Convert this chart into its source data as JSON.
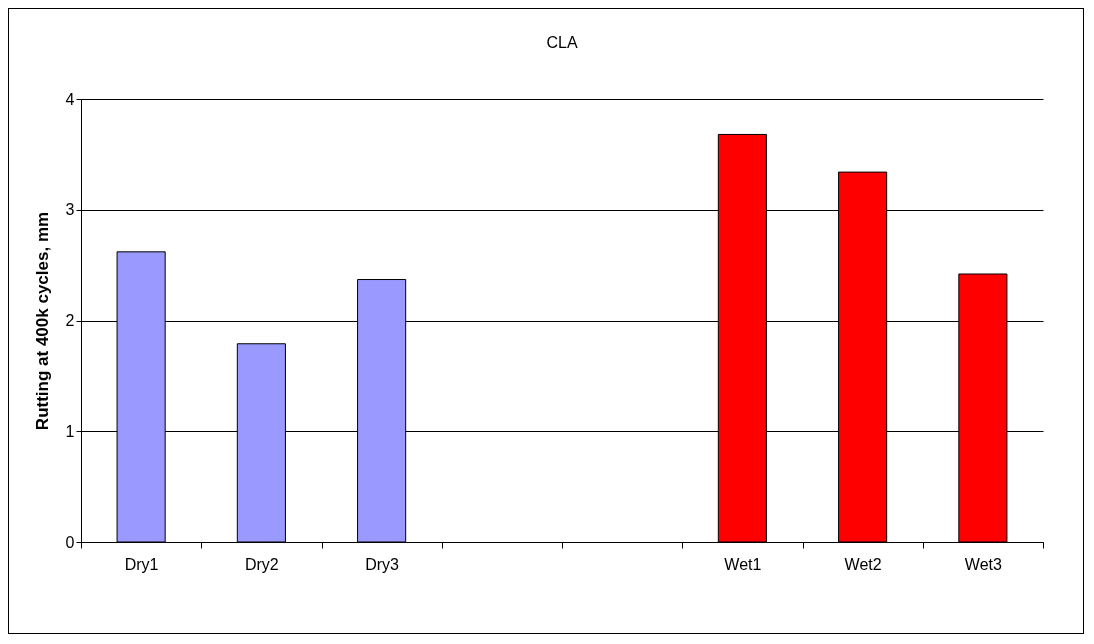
{
  "chart_data": {
    "type": "bar",
    "title": "CLA",
    "ylabel": "Rutting at 400k cycles, mm",
    "categories": [
      "Dry1",
      "Dry2",
      "Dry3",
      null,
      null,
      "Wet1",
      "Wet2",
      "Wet3"
    ],
    "values": [
      2.62,
      1.79,
      2.37,
      null,
      null,
      3.68,
      3.34,
      2.42
    ],
    "colors": [
      "#9999ff",
      "#9999ff",
      "#9999ff",
      "#9999ff",
      "#9999ff",
      "#ff0000",
      "#ff0000",
      "#ff0000"
    ],
    "ylim": [
      0,
      4
    ],
    "yticks": [
      0,
      1,
      2,
      3,
      4
    ],
    "grid": "y"
  }
}
